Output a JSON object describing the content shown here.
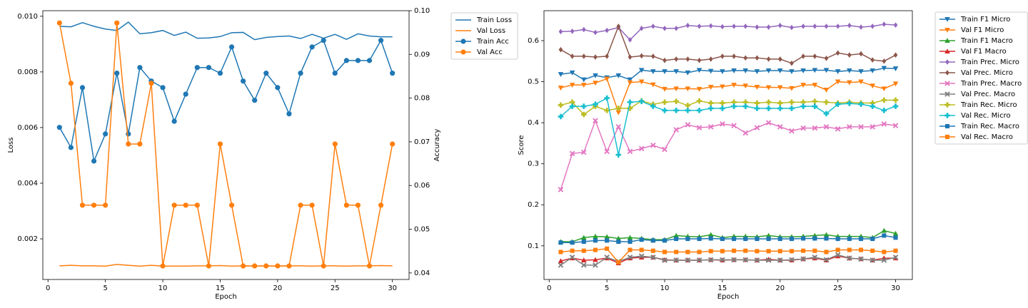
{
  "chart_data": [
    {
      "type": "line",
      "xlabel": "Epoch",
      "ylabel": "Loss",
      "y2label": "Accuracy",
      "legend": "outside-right",
      "x": [
        1,
        2,
        3,
        4,
        5,
        6,
        7,
        8,
        9,
        10,
        11,
        12,
        13,
        14,
        15,
        16,
        17,
        18,
        19,
        20,
        21,
        22,
        23,
        24,
        25,
        26,
        27,
        28,
        29,
        30
      ],
      "xlim": [
        -0.45,
        31.45
      ],
      "xticks": [
        0,
        5,
        10,
        15,
        20,
        25,
        30
      ],
      "ylim": [
        0.00054,
        0.0102
      ],
      "yticks": [
        0.002,
        0.004,
        0.006,
        0.008,
        {
          "value": 0.01,
          "label": "0.010"
        }
      ],
      "y2lim": [
        0.0385,
        0.1
      ],
      "y2ticks": [
        0.04,
        0.05,
        0.06,
        0.07,
        0.08,
        0.09,
        {
          "value": 0.1,
          "label": "0.10"
        }
      ],
      "series": [
        {
          "name": "Train Loss",
          "color": "#1f77b4",
          "values": [
            0.00964,
            0.00962,
            0.00977,
            0.00964,
            0.00954,
            0.00949,
            0.00979,
            0.00937,
            0.00941,
            0.00949,
            0.00931,
            0.00943,
            0.00921,
            0.00922,
            0.00927,
            0.00941,
            0.00942,
            0.00916,
            0.00924,
            0.00927,
            0.00929,
            0.0092,
            0.00935,
            0.00921,
            0.00935,
            0.00917,
            0.00937,
            0.00929,
            0.00926,
            0.00926
          ]
        },
        {
          "name": "Val Loss",
          "color": "#ff7f0e",
          "values": [
            0.00103,
            0.00105,
            0.00103,
            0.00103,
            0.00102,
            0.00108,
            0.00105,
            0.00102,
            0.00105,
            0.00102,
            0.00102,
            0.00102,
            0.00103,
            0.00103,
            0.00104,
            0.00102,
            0.00103,
            0.00102,
            0.00103,
            0.00102,
            0.00103,
            0.00103,
            0.00102,
            0.00103,
            0.00103,
            0.00102,
            0.00103,
            0.00103,
            0.00104,
            0.00103
          ]
        },
        {
          "name": "Train Acc",
          "color": "#1f77b4",
          "marker": "o",
          "axis": "y2",
          "values": [
            0.0733,
            0.0687,
            0.0824,
            0.0656,
            0.0718,
            0.0857,
            0.0718,
            0.087,
            0.0839,
            0.0824,
            0.0747,
            0.0809,
            0.087,
            0.087,
            0.0857,
            0.0917,
            0.0839,
            0.0795,
            0.0857,
            0.0824,
            0.0764,
            0.0857,
            0.0917,
            0.0932,
            0.0857,
            0.0886,
            0.0886,
            0.0886,
            0.0932,
            0.0857
          ]
        },
        {
          "name": "Val Acc",
          "color": "#ff7f0e",
          "marker": "o",
          "axis": "y2",
          "values": [
            0.0972,
            0.0834,
            0.0555,
            0.0555,
            0.0555,
            0.0972,
            0.0695,
            0.0695,
            0.0834,
            0.0416,
            0.0555,
            0.0555,
            0.0555,
            0.0416,
            0.0695,
            0.0555,
            0.0416,
            0.0416,
            0.0416,
            0.0416,
            0.0416,
            0.0555,
            0.0555,
            0.0416,
            0.0695,
            0.0555,
            0.0555,
            0.0416,
            0.0555,
            0.0695
          ]
        }
      ]
    },
    {
      "type": "line",
      "xlabel": "Epoch",
      "ylabel": "Score",
      "legend": "outside-right",
      "x": [
        1,
        2,
        3,
        4,
        5,
        6,
        7,
        8,
        9,
        10,
        11,
        12,
        13,
        14,
        15,
        16,
        17,
        18,
        19,
        20,
        21,
        22,
        23,
        24,
        25,
        26,
        27,
        28,
        29,
        30
      ],
      "xlim": [
        -0.45,
        31.45
      ],
      "xticks": [
        0,
        5,
        10,
        15,
        20,
        25,
        30
      ],
      "ylim": [
        0.018,
        0.673
      ],
      "yticks": [
        0.1,
        0.2,
        0.3,
        0.4,
        0.5,
        0.6
      ],
      "series": [
        {
          "name": "Train F1 Micro",
          "color": "#1f77b4",
          "marker": "v",
          "values": [
            0.518,
            0.522,
            0.505,
            0.515,
            0.51,
            0.515,
            0.505,
            0.528,
            0.525,
            0.525,
            0.525,
            0.522,
            0.528,
            0.526,
            0.525,
            0.527,
            0.527,
            0.525,
            0.527,
            0.527,
            0.525,
            0.527,
            0.528,
            0.528,
            0.525,
            0.527,
            0.525,
            0.527,
            0.533,
            0.532
          ]
        },
        {
          "name": "Val F1 Micro",
          "color": "#ff7f0e",
          "marker": "v",
          "values": [
            0.485,
            0.492,
            0.492,
            0.497,
            0.507,
            0.425,
            0.498,
            0.5,
            0.493,
            0.482,
            0.483,
            0.483,
            0.482,
            0.487,
            0.488,
            0.492,
            0.49,
            0.487,
            0.486,
            0.486,
            0.484,
            0.492,
            0.492,
            0.48,
            0.5,
            0.498,
            0.5,
            0.49,
            0.483,
            0.495
          ]
        },
        {
          "name": "Train F1 Macro",
          "color": "#2ca02c",
          "marker": "^",
          "values": [
            0.11,
            0.11,
            0.12,
            0.123,
            0.122,
            0.118,
            0.12,
            0.118,
            0.115,
            0.115,
            0.125,
            0.123,
            0.122,
            0.127,
            0.12,
            0.123,
            0.123,
            0.122,
            0.125,
            0.122,
            0.122,
            0.123,
            0.125,
            0.127,
            0.123,
            0.123,
            0.123,
            0.12,
            0.137,
            0.13
          ]
        },
        {
          "name": "Val F1 Macro",
          "color": "#d62728",
          "marker": "^",
          "values": [
            0.063,
            0.07,
            0.065,
            0.066,
            0.07,
            0.058,
            0.07,
            0.072,
            0.072,
            0.066,
            0.065,
            0.065,
            0.065,
            0.066,
            0.065,
            0.066,
            0.066,
            0.065,
            0.067,
            0.065,
            0.065,
            0.068,
            0.07,
            0.065,
            0.075,
            0.07,
            0.068,
            0.065,
            0.07,
            0.07
          ]
        },
        {
          "name": "Train Prec. Micro",
          "color": "#9467bd",
          "marker": "D",
          "values": [
            0.622,
            0.623,
            0.627,
            0.62,
            0.625,
            0.632,
            0.602,
            0.63,
            0.635,
            0.63,
            0.63,
            0.637,
            0.635,
            0.636,
            0.634,
            0.635,
            0.635,
            0.633,
            0.633,
            0.637,
            0.632,
            0.635,
            0.635,
            0.635,
            0.635,
            0.637,
            0.633,
            0.635,
            0.64,
            0.638
          ]
        },
        {
          "name": "Val Prec. Micro",
          "color": "#8c564b",
          "marker": "D",
          "values": [
            0.578,
            0.562,
            0.562,
            0.56,
            0.562,
            0.635,
            0.56,
            0.563,
            0.562,
            0.552,
            0.555,
            0.555,
            0.552,
            0.555,
            0.562,
            0.562,
            0.558,
            0.558,
            0.555,
            0.555,
            0.545,
            0.562,
            0.562,
            0.557,
            0.57,
            0.565,
            0.568,
            0.553,
            0.55,
            0.565
          ]
        },
        {
          "name": "Train Prec. Macro",
          "color": "#e377c2",
          "marker": "X",
          "values": [
            0.237,
            0.325,
            0.328,
            0.405,
            0.33,
            0.39,
            0.33,
            0.337,
            0.345,
            0.335,
            0.383,
            0.395,
            0.388,
            0.39,
            0.397,
            0.393,
            0.375,
            0.388,
            0.4,
            0.39,
            0.38,
            0.387,
            0.387,
            0.39,
            0.385,
            0.39,
            0.39,
            0.39,
            0.397,
            0.393
          ]
        },
        {
          "name": "Val Prec. Macro",
          "color": "#7f7f7f",
          "marker": "X",
          "values": [
            0.053,
            0.072,
            0.053,
            0.053,
            0.072,
            0.062,
            0.072,
            0.075,
            0.072,
            0.065,
            0.065,
            0.065,
            0.065,
            0.066,
            0.066,
            0.066,
            0.066,
            0.065,
            0.065,
            0.065,
            0.066,
            0.068,
            0.072,
            0.066,
            0.078,
            0.07,
            0.068,
            0.065,
            0.065,
            0.072
          ]
        },
        {
          "name": "Train Rec. Micro",
          "color": "#bcbd22",
          "marker": "P",
          "values": [
            0.443,
            0.45,
            0.42,
            0.44,
            0.43,
            0.435,
            0.435,
            0.453,
            0.445,
            0.45,
            0.452,
            0.442,
            0.453,
            0.448,
            0.448,
            0.45,
            0.45,
            0.448,
            0.45,
            0.448,
            0.45,
            0.45,
            0.452,
            0.45,
            0.448,
            0.45,
            0.448,
            0.448,
            0.455,
            0.455
          ]
        },
        {
          "name": "Val Rec. Micro",
          "color": "#17becf",
          "marker": "P",
          "values": [
            0.415,
            0.44,
            0.44,
            0.445,
            0.46,
            0.322,
            0.45,
            0.452,
            0.44,
            0.43,
            0.43,
            0.43,
            0.43,
            0.435,
            0.435,
            0.44,
            0.44,
            0.435,
            0.435,
            0.435,
            0.435,
            0.44,
            0.44,
            0.422,
            0.445,
            0.447,
            0.445,
            0.44,
            0.43,
            0.44
          ]
        },
        {
          "name": "Train Rec. Macro",
          "color": "#1f77b4",
          "marker": "s",
          "values": [
            0.108,
            0.108,
            0.11,
            0.113,
            0.113,
            0.11,
            0.11,
            0.115,
            0.113,
            0.113,
            0.117,
            0.117,
            0.117,
            0.118,
            0.117,
            0.117,
            0.117,
            0.117,
            0.117,
            0.117,
            0.117,
            0.118,
            0.118,
            0.118,
            0.117,
            0.117,
            0.117,
            0.117,
            0.125,
            0.12
          ]
        },
        {
          "name": "Val Rec. Macro",
          "color": "#ff7f0e",
          "marker": "s",
          "values": [
            0.085,
            0.088,
            0.088,
            0.09,
            0.093,
            0.06,
            0.09,
            0.09,
            0.088,
            0.085,
            0.085,
            0.085,
            0.085,
            0.087,
            0.087,
            0.088,
            0.088,
            0.087,
            0.087,
            0.087,
            0.087,
            0.088,
            0.088,
            0.085,
            0.09,
            0.09,
            0.09,
            0.088,
            0.085,
            0.088
          ]
        }
      ]
    }
  ]
}
